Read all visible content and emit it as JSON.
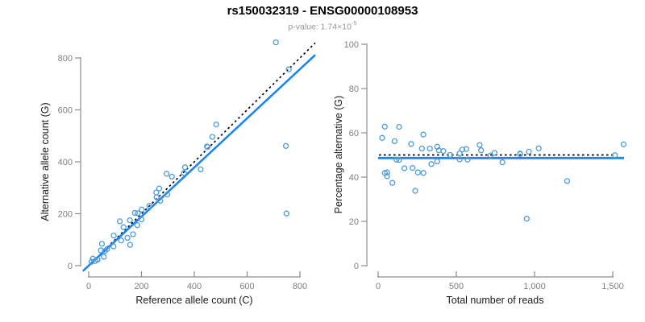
{
  "header": {
    "title": "rs150032319 - ENSG00000108953",
    "subtitle_prefix": "p-value: 1.74×10",
    "subtitle_exponent": "-5"
  },
  "colors": {
    "point_blue": "#4D9BDC",
    "line_blue": "#1C86EE",
    "axis_gray": "#8C8C8C",
    "tick_label_gray": "#7F7F7F"
  },
  "chart_data": [
    {
      "type": "scatter",
      "name": "allele-counts",
      "xlabel": "Reference allele count (C)",
      "ylabel": "Alternative allele count (G)",
      "xlim": [
        0,
        860
      ],
      "ylim": [
        0,
        870
      ],
      "x_ticks": [
        0,
        200,
        400,
        600,
        800
      ],
      "x_tick_labels": [
        "0",
        "200",
        "400",
        "600",
        "800"
      ],
      "y_ticks": [
        0,
        200,
        400,
        600,
        800
      ],
      "y_tick_labels": [
        "0",
        "200",
        "400",
        "600",
        "800"
      ],
      "grid": false,
      "point_color": "#4D9BDC",
      "points": [
        [
          11,
          15
        ],
        [
          16,
          27
        ],
        [
          25,
          18
        ],
        [
          34,
          23
        ],
        [
          33,
          24
        ],
        [
          57,
          34
        ],
        [
          46,
          59
        ],
        [
          61,
          56
        ],
        [
          50,
          84
        ],
        [
          70,
          64
        ],
        [
          94,
          74
        ],
        [
          95,
          116
        ],
        [
          123,
          97
        ],
        [
          157,
          80
        ],
        [
          147,
          107
        ],
        [
          132,
          148
        ],
        [
          118,
          171
        ],
        [
          168,
          121
        ],
        [
          156,
          175
        ],
        [
          184,
          156
        ],
        [
          175,
          203
        ],
        [
          200,
          178
        ],
        [
          186,
          202
        ],
        [
          201,
          216
        ],
        [
          230,
          230
        ],
        [
          257,
          264
        ],
        [
          271,
          250
        ],
        [
          256,
          282
        ],
        [
          267,
          297
        ],
        [
          298,
          274
        ],
        [
          295,
          354
        ],
        [
          315,
          343
        ],
        [
          361,
          357
        ],
        [
          365,
          379
        ],
        [
          424,
          371
        ],
        [
          448,
          459
        ],
        [
          450,
          457
        ],
        [
          468,
          496
        ],
        [
          483,
          544
        ],
        [
          749,
          201
        ],
        [
          747,
          461
        ],
        [
          758,
          756
        ],
        [
          709,
          860
        ]
      ],
      "lines": [
        {
          "id": "identity",
          "slope": 1,
          "intercept": 0,
          "style": "dotted",
          "color": "#000000",
          "width": 1.7
        },
        {
          "id": "fit",
          "slope": 0.946,
          "intercept": 0,
          "style": "solid",
          "color": "#1C86EE",
          "width": 2.6
        }
      ]
    },
    {
      "type": "scatter",
      "name": "percentage-vs-reads",
      "xlabel": "Total number of reads",
      "ylabel": "Percentage alternative (G)",
      "xlim": [
        0,
        1580
      ],
      "ylim": [
        0,
        100
      ],
      "x_ticks": [
        0,
        500,
        1000,
        1500
      ],
      "x_tick_labels": [
        "0",
        "500",
        "1,000",
        "1,500"
      ],
      "y_ticks": [
        0,
        20,
        40,
        60,
        80,
        100
      ],
      "y_tick_labels": [
        "0",
        "20",
        "40",
        "60",
        "80",
        "100"
      ],
      "grid": false,
      "point_color": "#4D9BDC",
      "points": [
        [
          26,
          57.7
        ],
        [
          43,
          62.8
        ],
        [
          43,
          41.9
        ],
        [
          57,
          40.4
        ],
        [
          57,
          42.1
        ],
        [
          91,
          37.4
        ],
        [
          105,
          56.2
        ],
        [
          117,
          47.9
        ],
        [
          134,
          62.7
        ],
        [
          134,
          47.8
        ],
        [
          168,
          44.0
        ],
        [
          211,
          55.0
        ],
        [
          220,
          44.1
        ],
        [
          237,
          33.8
        ],
        [
          254,
          42.1
        ],
        [
          280,
          52.9
        ],
        [
          289,
          59.2
        ],
        [
          289,
          41.9
        ],
        [
          331,
          52.9
        ],
        [
          340,
          45.9
        ],
        [
          378,
          53.7
        ],
        [
          378,
          47.1
        ],
        [
          388,
          52.1
        ],
        [
          417,
          51.8
        ],
        [
          460,
          50.0
        ],
        [
          521,
          50.7
        ],
        [
          521,
          48.0
        ],
        [
          538,
          52.4
        ],
        [
          564,
          52.7
        ],
        [
          572,
          47.9
        ],
        [
          649,
          54.5
        ],
        [
          658,
          52.1
        ],
        [
          718,
          49.7
        ],
        [
          744,
          50.9
        ],
        [
          795,
          46.7
        ],
        [
          907,
          50.6
        ],
        [
          907,
          50.4
        ],
        [
          964,
          51.5
        ],
        [
          1027,
          53.0
        ],
        [
          950,
          21.2
        ],
        [
          1208,
          38.2
        ],
        [
          1514,
          49.9
        ],
        [
          1569,
          54.8
        ]
      ],
      "lines": [
        {
          "id": "expected",
          "y": 50,
          "style": "dotted",
          "color": "#000000",
          "width": 1.7
        },
        {
          "id": "fit",
          "y": 48.6,
          "style": "solid",
          "color": "#1C86EE",
          "width": 2.9
        }
      ]
    }
  ]
}
